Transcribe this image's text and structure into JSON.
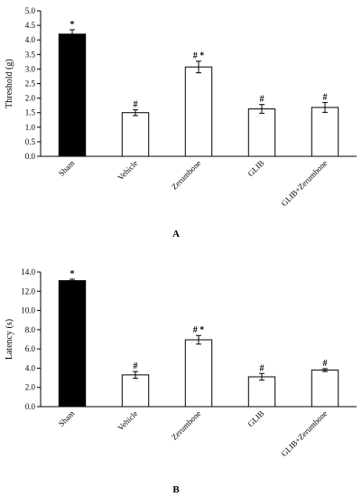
{
  "chart_data": [
    {
      "type": "bar",
      "panel_label": "A",
      "ylabel": "Threshold (g)",
      "ylim": [
        0,
        5
      ],
      "yticks": [
        "0.0",
        "0.5",
        "1.0",
        "1.5",
        "2.0",
        "2.5",
        "3.0",
        "3.5",
        "4.0",
        "4.5",
        "5.0"
      ],
      "ystep": 0.5,
      "categories": [
        "Sham",
        "Vehicle",
        "Zerumbone",
        "GLIB",
        "GLIB+Zerumbone"
      ],
      "values": [
        4.2,
        1.5,
        3.07,
        1.63,
        1.68
      ],
      "errors": [
        0.15,
        0.1,
        0.2,
        0.15,
        0.17
      ],
      "fills": [
        "#000000",
        "#ffffff",
        "#ffffff",
        "#ffffff",
        "#ffffff"
      ],
      "significance": [
        "*",
        "#",
        "# *",
        "#",
        "#"
      ]
    },
    {
      "type": "bar",
      "panel_label": "B",
      "ylabel": "Latency (s)",
      "ylim": [
        0,
        14
      ],
      "yticks": [
        "0.0",
        "2.0",
        "4.0",
        "6.0",
        "8.0",
        "10.0",
        "12.0",
        "14.0"
      ],
      "ystep": 2,
      "categories": [
        "Sham",
        "Vehicle",
        "Zerumbone",
        "GLIB",
        "GLIB+Zerumbone"
      ],
      "values": [
        13.1,
        3.3,
        6.95,
        3.1,
        3.8
      ],
      "errors": [
        0.15,
        0.35,
        0.45,
        0.35,
        0.15
      ],
      "fills": [
        "#000000",
        "#ffffff",
        "#ffffff",
        "#ffffff",
        "#ffffff"
      ],
      "significance": [
        "*",
        "#",
        "# *",
        "#",
        "#"
      ]
    }
  ]
}
